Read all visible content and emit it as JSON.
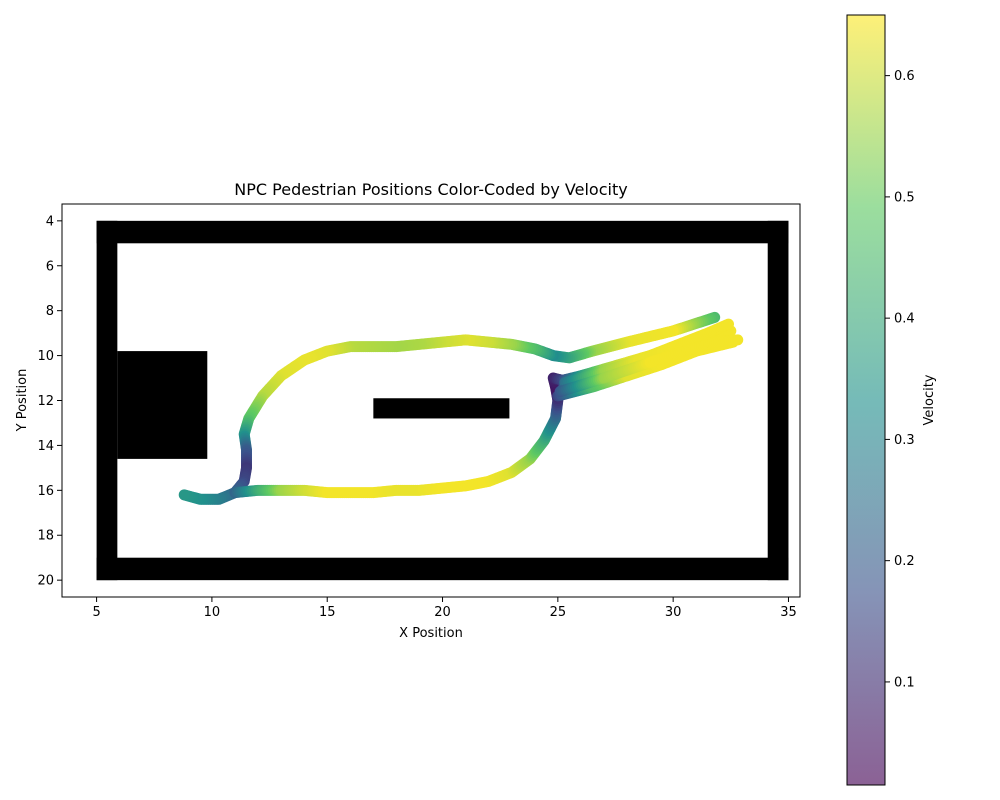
{
  "chart_data": {
    "type": "scatter",
    "title": "NPC Pedestrian Positions Color-Coded by Velocity",
    "xlabel": "X Position",
    "ylabel": "Y Position",
    "xlim": [
      3.5,
      35.5
    ],
    "ylim": [
      20.75,
      3.25
    ],
    "y_inverted": true,
    "xticks": [
      5,
      10,
      15,
      20,
      25,
      30,
      35
    ],
    "yticks": [
      4,
      6,
      8,
      10,
      12,
      14,
      16,
      18,
      20
    ],
    "grid": false,
    "colormap": "viridis",
    "colorbar": {
      "label": "Velocity",
      "range": [
        0.015,
        0.65
      ],
      "ticks": [
        0.1,
        0.2,
        0.3,
        0.4,
        0.5,
        0.6
      ],
      "tick_labels": [
        "0.1",
        "0.2",
        "0.3",
        "0.4",
        "0.5",
        "0.6"
      ],
      "alpha": 0.6
    },
    "obstacles": [
      {
        "name": "top-wall",
        "x": [
          5,
          35
        ],
        "y": [
          4.0,
          5.0
        ]
      },
      {
        "name": "bottom-wall",
        "x": [
          5,
          35
        ],
        "y": [
          19.0,
          20.0
        ]
      },
      {
        "name": "left-wall",
        "x": [
          5,
          5.9
        ],
        "y": [
          4.0,
          20.0
        ]
      },
      {
        "name": "right-wall",
        "x": [
          34.1,
          35
        ],
        "y": [
          4.0,
          20.0
        ]
      },
      {
        "name": "left-block",
        "x": [
          5.9,
          9.8
        ],
        "y": [
          9.8,
          14.6
        ]
      },
      {
        "name": "center-bar",
        "x": [
          17.0,
          22.9
        ],
        "y": [
          11.9,
          12.8
        ]
      }
    ],
    "trajectories": [
      {
        "name": "upper-loop",
        "points": [
          [
            31.8,
            8.3,
            0.45
          ],
          [
            30.0,
            8.9,
            0.64
          ],
          [
            28.0,
            9.4,
            0.63
          ],
          [
            26.5,
            9.8,
            0.55
          ],
          [
            25.5,
            10.1,
            0.4
          ],
          [
            24.8,
            10.0,
            0.32
          ],
          [
            24.0,
            9.7,
            0.45
          ],
          [
            23.0,
            9.5,
            0.55
          ],
          [
            22.0,
            9.4,
            0.6
          ],
          [
            21.0,
            9.3,
            0.62
          ],
          [
            20.0,
            9.4,
            0.6
          ],
          [
            19.0,
            9.5,
            0.57
          ],
          [
            18.0,
            9.6,
            0.56
          ],
          [
            17.0,
            9.6,
            0.57
          ],
          [
            16.0,
            9.6,
            0.58
          ],
          [
            15.0,
            9.8,
            0.62
          ],
          [
            14.0,
            10.2,
            0.63
          ],
          [
            13.0,
            10.9,
            0.62
          ],
          [
            12.2,
            11.8,
            0.58
          ],
          [
            11.6,
            12.8,
            0.48
          ],
          [
            11.4,
            13.5,
            0.35
          ],
          [
            11.5,
            14.2,
            0.2
          ],
          [
            11.5,
            15.0,
            0.12
          ],
          [
            11.4,
            15.6,
            0.15
          ],
          [
            11.0,
            16.1,
            0.22
          ],
          [
            10.3,
            16.4,
            0.28
          ],
          [
            9.5,
            16.4,
            0.33
          ],
          [
            8.8,
            16.2,
            0.35
          ]
        ]
      },
      {
        "name": "lower-loop",
        "points": [
          [
            11.0,
            16.1,
            0.22
          ],
          [
            12.0,
            16.0,
            0.4
          ],
          [
            13.0,
            16.0,
            0.55
          ],
          [
            14.0,
            16.0,
            0.6
          ],
          [
            15.0,
            16.1,
            0.64
          ],
          [
            16.0,
            16.1,
            0.64
          ],
          [
            17.0,
            16.1,
            0.64
          ],
          [
            18.0,
            16.0,
            0.63
          ],
          [
            19.0,
            16.0,
            0.63
          ],
          [
            20.0,
            15.9,
            0.64
          ],
          [
            21.0,
            15.8,
            0.64
          ],
          [
            22.0,
            15.6,
            0.64
          ],
          [
            23.0,
            15.2,
            0.62
          ],
          [
            23.8,
            14.6,
            0.55
          ],
          [
            24.4,
            13.8,
            0.42
          ],
          [
            24.9,
            12.8,
            0.25
          ],
          [
            25.0,
            12.0,
            0.12
          ],
          [
            24.9,
            11.4,
            0.05
          ],
          [
            24.8,
            11.0,
            0.08
          ],
          [
            25.2,
            11.1,
            0.15
          ],
          [
            26.0,
            10.9,
            0.35
          ],
          [
            27.0,
            10.6,
            0.55
          ],
          [
            28.0,
            10.3,
            0.62
          ],
          [
            29.0,
            10.0,
            0.64
          ],
          [
            30.0,
            9.7,
            0.64
          ],
          [
            31.0,
            9.4,
            0.64
          ],
          [
            32.0,
            9.1,
            0.64
          ],
          [
            32.5,
            8.9,
            0.64
          ]
        ]
      },
      {
        "name": "exit-fan-1",
        "points": [
          [
            25.2,
            11.5,
            0.2
          ],
          [
            26.5,
            11.1,
            0.45
          ],
          [
            28.0,
            10.6,
            0.62
          ],
          [
            29.5,
            10.1,
            0.64
          ],
          [
            31.0,
            9.6,
            0.64
          ],
          [
            32.4,
            9.1,
            0.64
          ]
        ]
      },
      {
        "name": "exit-fan-2",
        "points": [
          [
            25.0,
            11.8,
            0.15
          ],
          [
            26.5,
            11.4,
            0.45
          ],
          [
            28.0,
            10.9,
            0.62
          ],
          [
            29.5,
            10.4,
            0.64
          ],
          [
            31.0,
            9.8,
            0.64
          ],
          [
            32.6,
            9.4,
            0.64
          ]
        ]
      },
      {
        "name": "exit-fan-3",
        "points": [
          [
            25.3,
            11.2,
            0.25
          ],
          [
            27.0,
            10.7,
            0.55
          ],
          [
            28.5,
            10.2,
            0.63
          ],
          [
            30.0,
            9.6,
            0.64
          ],
          [
            31.5,
            9.0,
            0.64
          ],
          [
            32.4,
            8.6,
            0.64
          ]
        ]
      },
      {
        "name": "exit-fan-4",
        "points": [
          [
            25.1,
            11.6,
            0.18
          ],
          [
            27.0,
            11.0,
            0.55
          ],
          [
            29.0,
            10.3,
            0.64
          ],
          [
            30.5,
            9.8,
            0.64
          ],
          [
            31.8,
            9.4,
            0.64
          ],
          [
            32.8,
            9.3,
            0.64
          ]
        ]
      }
    ]
  }
}
